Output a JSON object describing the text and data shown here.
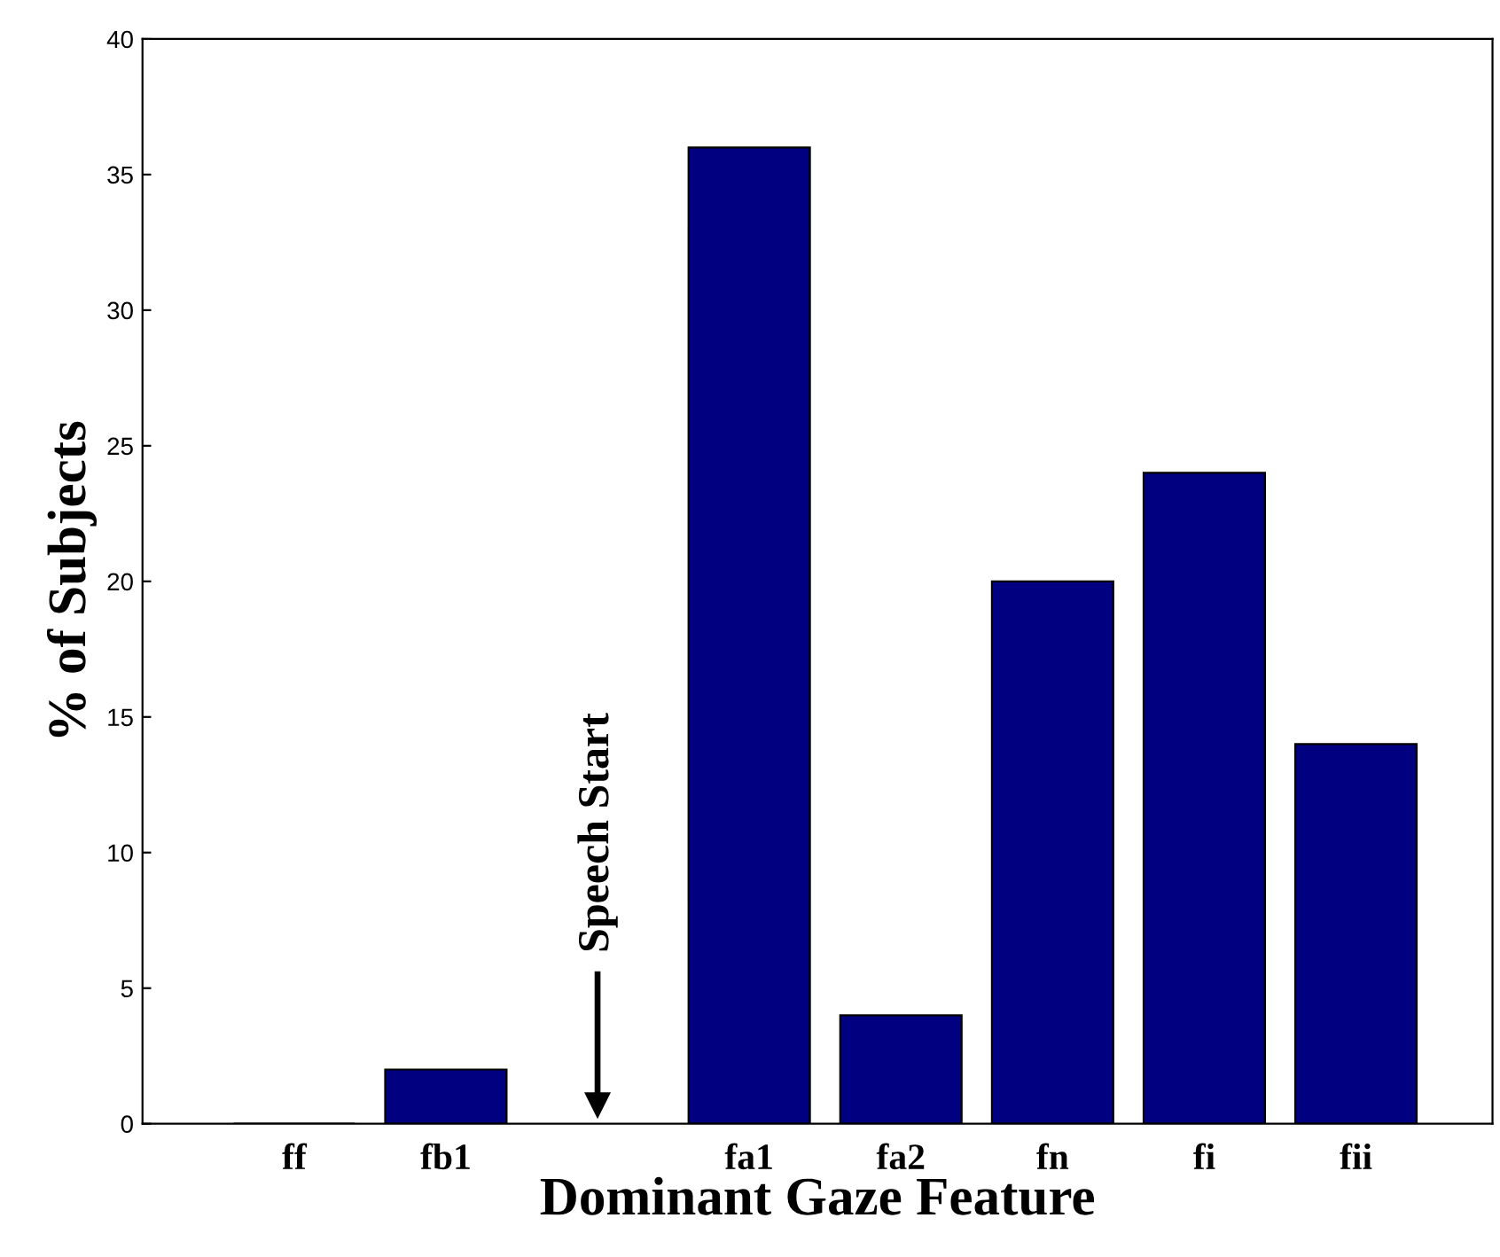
{
  "chart_data": {
    "type": "bar",
    "xlabel": "Dominant Gaze Feature",
    "ylabel": "% of Subjects",
    "categories": [
      "ff",
      "fb1",
      null,
      "fa1",
      "fa2",
      "fn",
      "fi",
      "fii"
    ],
    "values": [
      0,
      2,
      null,
      36,
      4,
      20,
      24,
      14
    ],
    "color": "#000080",
    "ylim": [
      0,
      40
    ],
    "yticks": [
      0,
      5,
      10,
      15,
      20,
      25,
      30,
      35,
      40
    ],
    "grid": false,
    "annotations": [
      "Speech Start"
    ]
  }
}
